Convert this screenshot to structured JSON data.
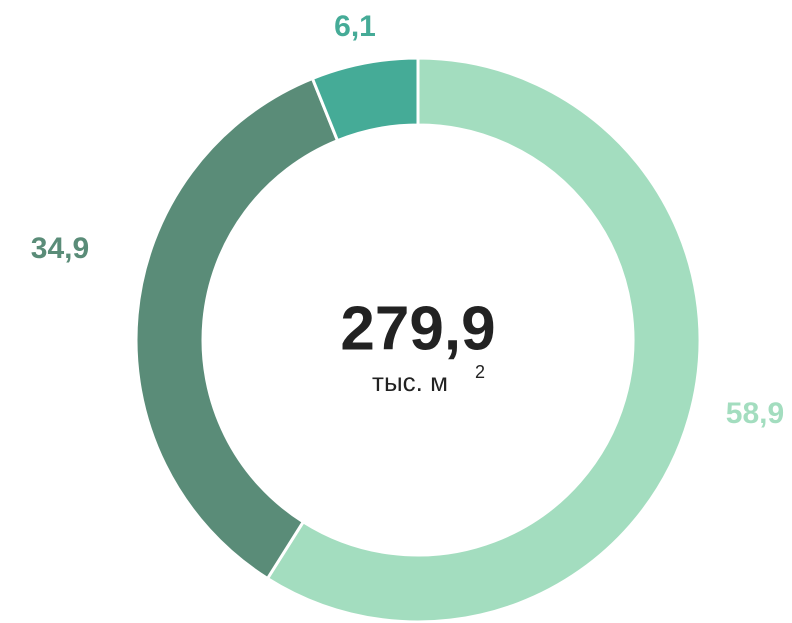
{
  "chart_data": {
    "type": "donut",
    "center_label": "279,9",
    "center_unit": "тыс. м",
    "center_unit_sup": "2",
    "series": [
      {
        "name": null,
        "values": [
          58.9,
          34.9,
          6.1
        ],
        "value_labels": [
          "58,9",
          "34,9",
          "6,1"
        ],
        "colors": [
          "#a3ddbf",
          "#5a8c78",
          "#45ab97"
        ]
      }
    ]
  }
}
